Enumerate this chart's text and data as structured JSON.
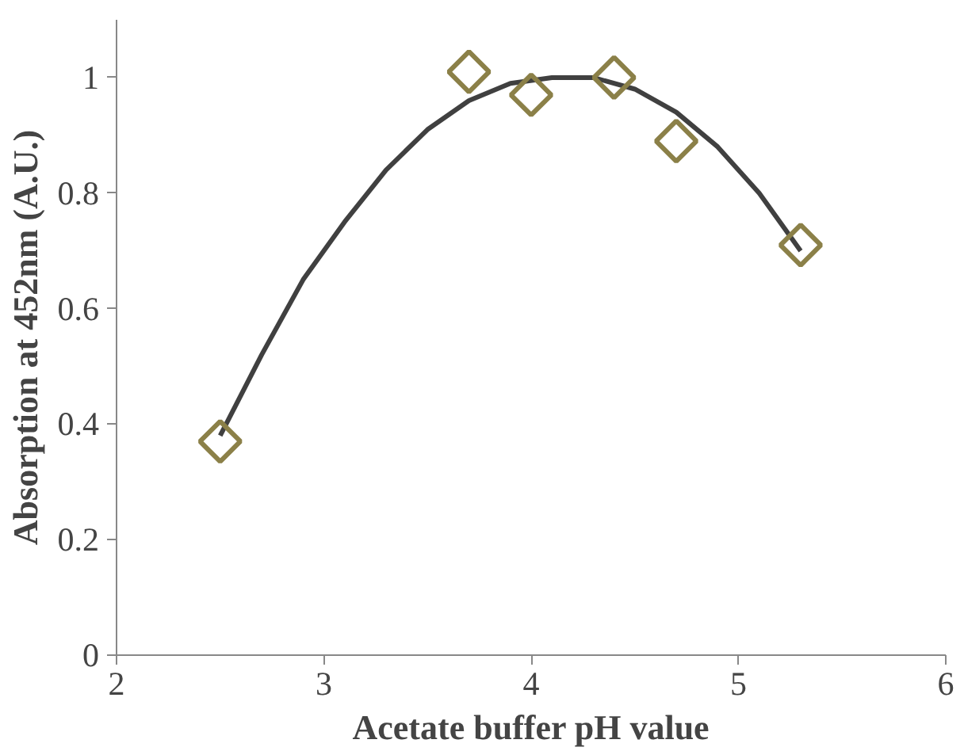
{
  "chart_data": {
    "type": "scatter",
    "xlabel": "Acetate buffer pH value",
    "ylabel": "Absorption at 452nm (A.U.)",
    "xlim": [
      2,
      6
    ],
    "xticks": [
      2,
      3,
      4,
      5,
      6
    ],
    "ylim": [
      0,
      1.1
    ],
    "yticks": [
      0,
      0.2,
      0.4,
      0.6,
      0.8,
      1
    ],
    "grid": false,
    "series": [
      {
        "type": "line",
        "marker": "none",
        "line_style": "solid",
        "color": "#404040",
        "x": [
          2.5,
          2.7,
          2.9,
          3.1,
          3.3,
          3.5,
          3.7,
          3.9,
          4.1,
          4.3,
          4.5,
          4.7,
          4.9,
          5.1,
          5.3
        ],
        "values": [
          0.38,
          0.52,
          0.65,
          0.75,
          0.84,
          0.91,
          0.96,
          0.99,
          1.0,
          1.0,
          0.98,
          0.94,
          0.88,
          0.8,
          0.7
        ]
      },
      {
        "marker": "diamond",
        "color": "#8b8048",
        "x": [
          2.5,
          3.7,
          4.0,
          4.4,
          4.7,
          5.3
        ],
        "values": [
          0.37,
          1.01,
          0.97,
          1.0,
          0.89,
          0.71
        ]
      }
    ]
  }
}
